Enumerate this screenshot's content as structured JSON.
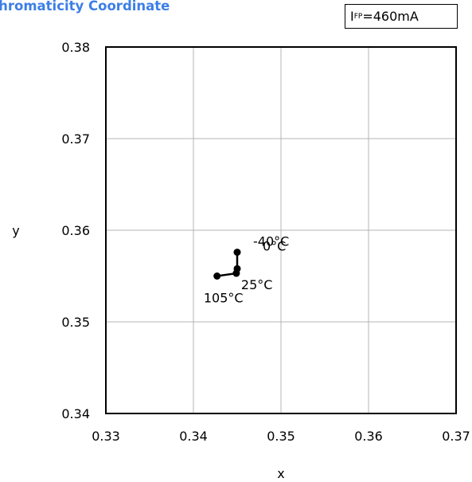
{
  "title": "Chromaticity Coordinate",
  "condition": {
    "symbol": "I",
    "subscript": "FP",
    "value": "=460mA"
  },
  "chart_data": {
    "type": "line",
    "title": "Chromaticity Coordinate",
    "xlabel": "x",
    "ylabel": "y",
    "xlim": [
      0.33,
      0.37
    ],
    "ylim": [
      0.34,
      0.38
    ],
    "xticks": [
      "0.33",
      "0.34",
      "0.35",
      "0.36",
      "0.37"
    ],
    "yticks": [
      "0.34",
      "0.35",
      "0.36",
      "0.37",
      "0.38"
    ],
    "grid": true,
    "series": [
      {
        "points": [
          {
            "x": 0.345,
            "y": 0.3576,
            "label": "-40°C"
          },
          {
            "x": 0.345,
            "y": 0.3558,
            "label": "0°C"
          },
          {
            "x": 0.3449,
            "y": 0.3553,
            "label": "25°C"
          },
          {
            "x": 0.3427,
            "y": 0.355,
            "label": "105°C"
          }
        ]
      }
    ],
    "colors": {
      "line": "#000000",
      "grid": "#b4b4b4",
      "title": "#3d7fe6"
    }
  }
}
